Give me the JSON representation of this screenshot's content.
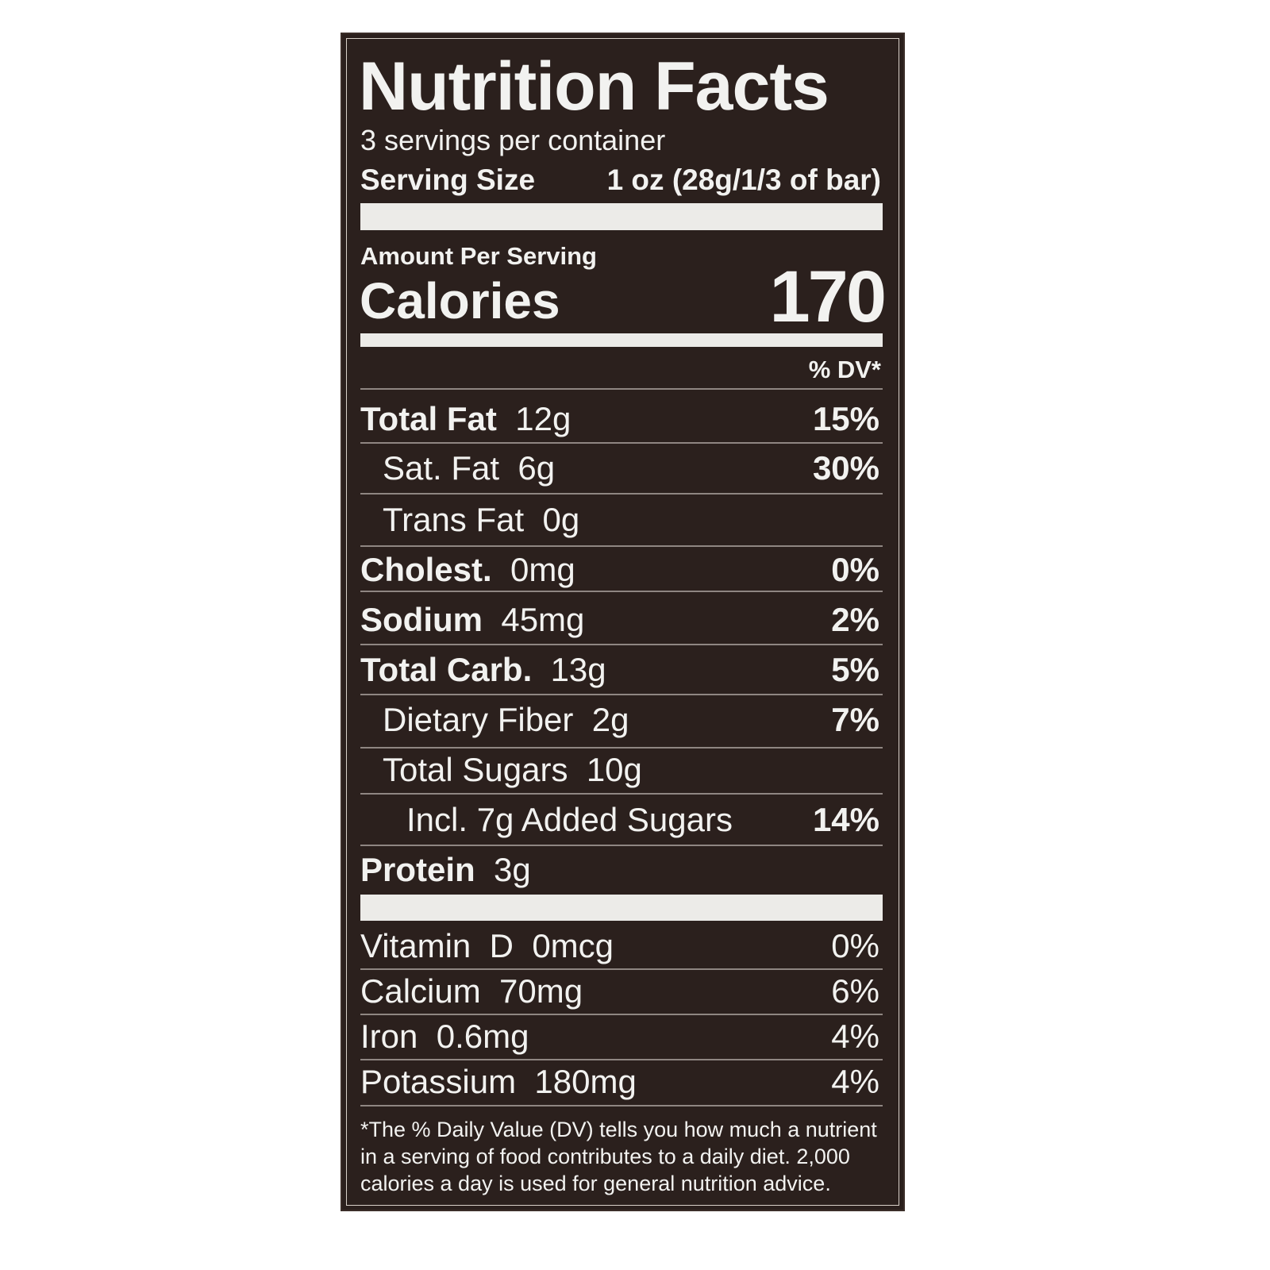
{
  "title": "Nutrition Facts",
  "servings_per_container": "3 servings per container",
  "serving_size_label": "Serving Size",
  "serving_size_value": "1 oz (28g/1/3 of bar)",
  "amount_per_serving": "Amount Per Serving",
  "calories_label": "Calories",
  "calories_value": "170",
  "dv_header": "% DV*",
  "nutrients": [
    {
      "name": "Total Fat",
      "amount": "12g",
      "dv": "15%"
    },
    {
      "name": "Sat. Fat",
      "amount": "6g",
      "dv": "30%"
    },
    {
      "name": "Trans Fat",
      "amount": "0g",
      "dv": ""
    },
    {
      "name": "Cholest.",
      "amount": "0mg",
      "dv": "0%"
    },
    {
      "name": "Sodium",
      "amount": "45mg",
      "dv": "2%"
    },
    {
      "name": "Total Carb.",
      "amount": "13g",
      "dv": "5%"
    },
    {
      "name": "Dietary Fiber",
      "amount": "2g",
      "dv": "7%"
    },
    {
      "name": "Total Sugars",
      "amount": "10g",
      "dv": ""
    },
    {
      "name": "Incl. 7g Added Sugars",
      "amount": "",
      "dv": "14%"
    },
    {
      "name": "Protein",
      "amount": "3g",
      "dv": ""
    }
  ],
  "vitamins": [
    {
      "name": "Vitamin  D",
      "amount": "0mcg",
      "dv": "0%"
    },
    {
      "name": "Calcium",
      "amount": "70mg",
      "dv": "6%"
    },
    {
      "name": "Iron",
      "amount": "0.6mg",
      "dv": "4%"
    },
    {
      "name": "Potassium",
      "amount": "180mg",
      "dv": "4%"
    }
  ],
  "footnote": [
    "*The % Daily Value (DV) tells you how much a nutrient",
    "in a serving of food contributes to a daily diet. 2,000",
    "calories a day is used for general nutrition advice."
  ]
}
